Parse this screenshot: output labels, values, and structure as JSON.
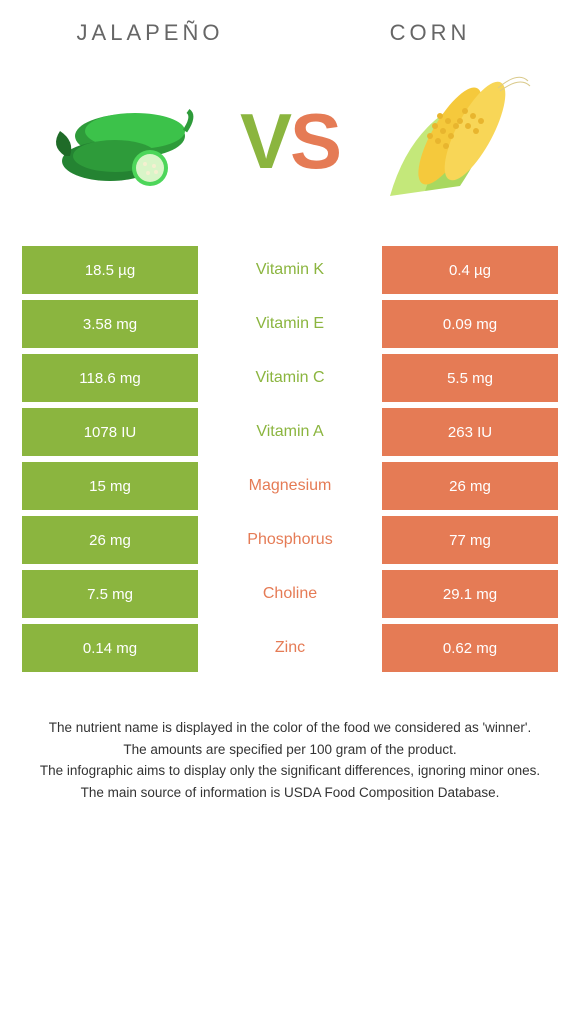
{
  "titles": {
    "left": "JALAPEÑO",
    "right": "CORN"
  },
  "vs": {
    "v": "V",
    "s": "S"
  },
  "colors": {
    "left": "#8bb53f",
    "right": "#e57b55"
  },
  "rows": [
    {
      "left": "18.5 µg",
      "label": "Vitamin K",
      "right": "0.4 µg",
      "winner": "left"
    },
    {
      "left": "3.58 mg",
      "label": "Vitamin E",
      "right": "0.09 mg",
      "winner": "left"
    },
    {
      "left": "118.6 mg",
      "label": "Vitamin C",
      "right": "5.5 mg",
      "winner": "left"
    },
    {
      "left": "1078 IU",
      "label": "Vitamin A",
      "right": "263 IU",
      "winner": "left"
    },
    {
      "left": "15 mg",
      "label": "Magnesium",
      "right": "26 mg",
      "winner": "right"
    },
    {
      "left": "26 mg",
      "label": "Phosphorus",
      "right": "77 mg",
      "winner": "right"
    },
    {
      "left": "7.5 mg",
      "label": "Choline",
      "right": "29.1 mg",
      "winner": "right"
    },
    {
      "left": "0.14 mg",
      "label": "Zinc",
      "right": "0.62 mg",
      "winner": "right"
    }
  ],
  "footnotes": [
    "The nutrient name is displayed in the color of the food we considered as 'winner'.",
    "The amounts are specified per 100 gram of the product.",
    "The infographic aims to display only the significant differences, ignoring minor ones.",
    "The main source of information is USDA Food Composition Database."
  ]
}
